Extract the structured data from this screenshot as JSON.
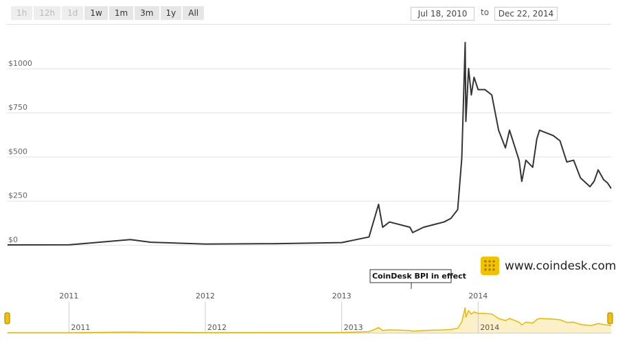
{
  "controls": {
    "range_buttons": [
      {
        "label": "1h",
        "enabled": false
      },
      {
        "label": "12h",
        "enabled": false
      },
      {
        "label": "1d",
        "enabled": false
      },
      {
        "label": "1w",
        "enabled": true
      },
      {
        "label": "1m",
        "enabled": true
      },
      {
        "label": "3m",
        "enabled": true
      },
      {
        "label": "1y",
        "enabled": true
      },
      {
        "label": "All",
        "enabled": true
      }
    ],
    "date_from": "Jul 18, 2010",
    "separator": "to",
    "date_to": "Dec 22, 2014"
  },
  "branding": "www.coindesk.com",
  "chart_data": {
    "type": "line",
    "color": "#333333",
    "navigator_color": "#e8b800",
    "grid": true,
    "x": [
      2010.55,
      2011.0,
      2011.45,
      2011.6,
      2012.0,
      2012.5,
      2013.0,
      2013.2,
      2013.27,
      2013.3,
      2013.35,
      2013.5,
      2013.52,
      2013.6,
      2013.75,
      2013.8,
      2013.85,
      2013.88,
      2013.905,
      2013.91,
      2013.93,
      2013.95,
      2013.97,
      2014.0,
      2014.05,
      2014.1,
      2014.15,
      2014.2,
      2014.23,
      2014.3,
      2014.32,
      2014.35,
      2014.4,
      2014.43,
      2014.45,
      2014.55,
      2014.6,
      2014.65,
      2014.7,
      2014.75,
      2014.82,
      2014.85,
      2014.88,
      2014.92,
      2014.95,
      2014.975
    ],
    "values": [
      0,
      0.3,
      30,
      15,
      5,
      7,
      13,
      45,
      230,
      100,
      130,
      100,
      70,
      100,
      130,
      150,
      200,
      490,
      1147,
      700,
      1000,
      850,
      950,
      880,
      880,
      850,
      650,
      550,
      650,
      480,
      360,
      480,
      440,
      600,
      650,
      620,
      590,
      470,
      480,
      380,
      330,
      360,
      425,
      370,
      350,
      320
    ],
    "xlim": [
      2010.545,
      2014.975
    ],
    "xticks": [
      2011,
      2012,
      2013,
      2014
    ],
    "ylim": [
      0,
      1250
    ],
    "yticks": [
      {
        "value": 0,
        "label": "$0"
      },
      {
        "value": 250,
        "label": "$250"
      },
      {
        "value": 500,
        "label": "$500"
      },
      {
        "value": 750,
        "label": "$750"
      },
      {
        "value": 1000,
        "label": "$1000"
      }
    ],
    "annotations": [
      {
        "text": "CoinDesk BPI in effect",
        "x": 2013.51
      }
    ]
  }
}
